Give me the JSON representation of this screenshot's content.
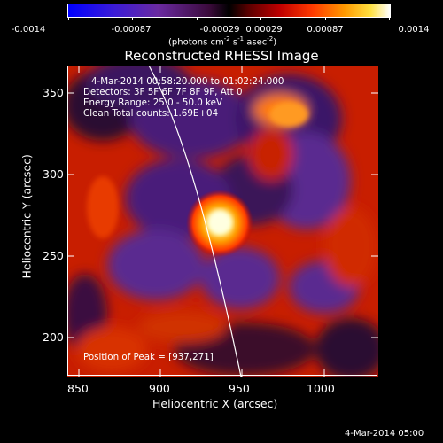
{
  "colorbar": {
    "ticks": [
      "-0.0014",
      "-0.00087",
      "-0.00029",
      "0.00029",
      "0.00087",
      "0.0014"
    ],
    "unit_main": "(photons cm",
    "unit_exp1": "-2",
    "unit_mid": " s",
    "unit_exp2": "-1",
    "unit_end": " asec",
    "unit_exp3": "-2",
    "unit_close": ")"
  },
  "title": "Reconstructed RHESSI Image",
  "overlay": {
    "time_range": "4-Mar-2014 00:58:20.000  to 01:02:24.000",
    "detectors": "Detectors: 3F 5F 6F 7F 8F 9F, Att 0",
    "energy": "Energy Range: 25.0 - 50.0 keV",
    "clean": "Clean    Total counts: 1.69E+04",
    "peak": "Position of Peak = [937,271]"
  },
  "axes": {
    "xlabel": "Heliocentric X (arcsec)",
    "ylabel": "Heliocentric Y (arcsec)",
    "xlim": [
      843,
      1033
    ],
    "ylim": [
      177,
      367
    ],
    "xticks": [
      850,
      900,
      950,
      1000
    ],
    "yticks": [
      200,
      250,
      300,
      350
    ]
  },
  "footer": "4-Mar-2014 05:00",
  "colors": {
    "frame": "#ffffff",
    "limb": "#ffffff"
  }
}
